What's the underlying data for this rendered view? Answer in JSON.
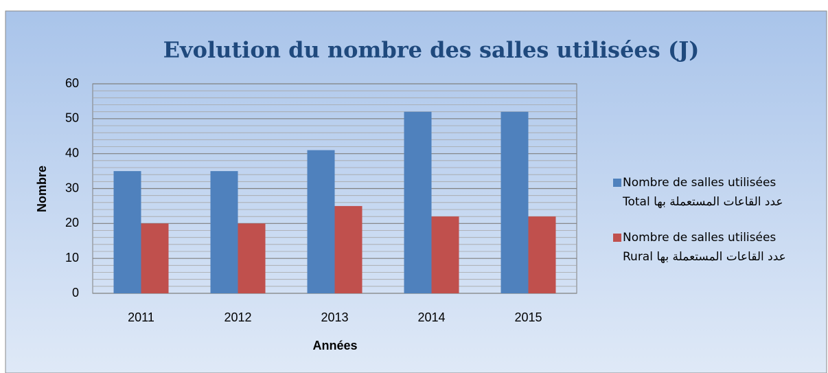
{
  "chart_data": {
    "type": "bar",
    "title": "Evolution du nombre des salles utilisées (J)",
    "x_label": "Années",
    "y_label": "Nombre",
    "categories": [
      "2011",
      "2012",
      "2013",
      "2014",
      "2015"
    ],
    "series": [
      {
        "name": "Nombre de salles utilisées Total عدد القاعات المستعملة بها",
        "color": "#4f81bd",
        "values": [
          35,
          35,
          41,
          52,
          52
        ]
      },
      {
        "name": "Nombre de salles utilisées Rural عدد القاعات المستعملة بها",
        "color": "#c0504d",
        "values": [
          20,
          20,
          25,
          22,
          22
        ]
      }
    ],
    "ylim": [
      0,
      60
    ],
    "yticks": [
      0,
      10,
      20,
      30,
      40,
      50,
      60
    ],
    "grid": true,
    "legend": "right"
  }
}
